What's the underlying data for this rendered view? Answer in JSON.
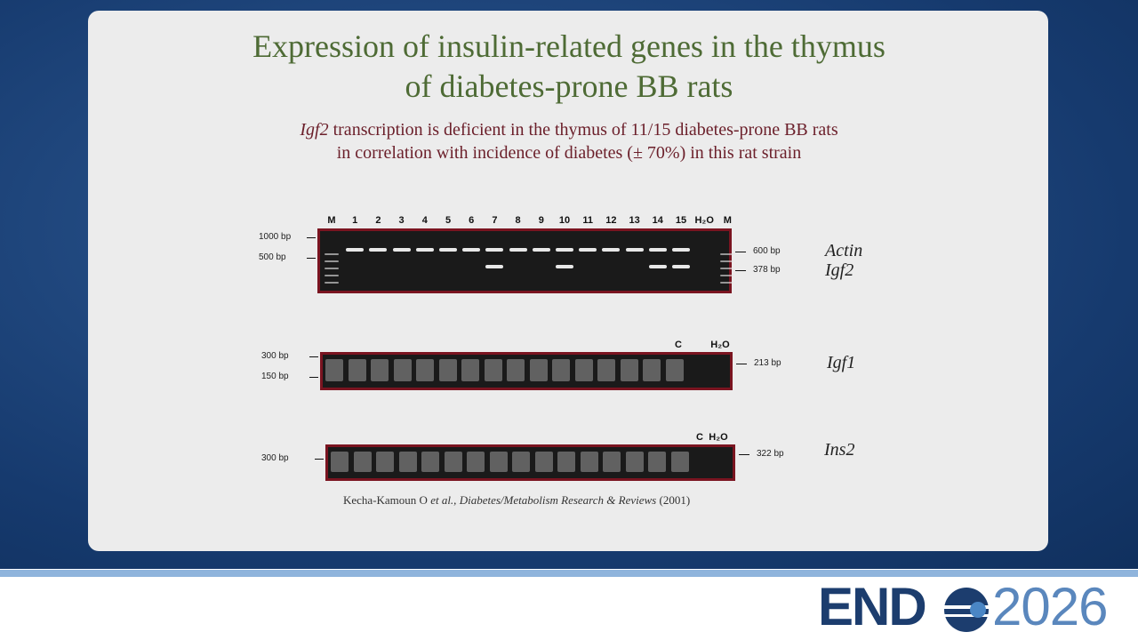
{
  "slide": {
    "title_lines": [
      "Expression of insulin-related genes in the thymus",
      "of diabetes-prone BB rats"
    ],
    "subtitle": {
      "italic": "Igf2",
      "rest": " transcription is deficient in the thymus of 11/15 diabetes-prone BB rats",
      "line2": "in correlation with incidence of diabetes (± 70%) in this rat strain"
    },
    "gels": [
      {
        "lanes": [
          "M",
          "1",
          "2",
          "3",
          "4",
          "5",
          "6",
          "7",
          "8",
          "9",
          "10",
          "11",
          "12",
          "13",
          "14",
          "15",
          "H₂O",
          "M"
        ],
        "left_markers": [
          "1000 bp",
          "500 bp"
        ],
        "right_markers": [
          "600 bp",
          "378 bp"
        ],
        "genes": [
          "Actin",
          "Igf2"
        ]
      },
      {
        "lanes": [
          "C",
          "H₂O"
        ],
        "left_markers": [
          "300 bp",
          "150 bp"
        ],
        "right_markers": [
          "213 bp"
        ],
        "genes": [
          "Igf1"
        ]
      },
      {
        "lanes": [
          "C",
          "H₂O"
        ],
        "left_markers": [
          "300 bp"
        ],
        "right_markers": [
          "322 bp"
        ],
        "genes": [
          "Ins2"
        ]
      }
    ],
    "citation": {
      "authors": "Kecha-Kamoun O ",
      "etal": "et al.,",
      "journal": " Diabetes/Metabolism Research & Reviews",
      "year": " (2001)"
    }
  },
  "logo": {
    "left": "END",
    "right": "2026"
  }
}
